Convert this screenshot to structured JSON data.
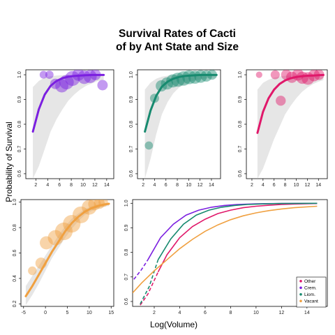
{
  "chart_data": {
    "type": "scatter",
    "title": [
      "Survival Rates of Cacti",
      "of by Ant State and Size"
    ],
    "ylabel": "Probability of Survival",
    "xlabel": "Log(Volume)",
    "panels": [
      {
        "name": "",
        "color": "#7B1FE0",
        "band_color": "#e6e6e6",
        "xlim": [
          0.3,
          15.2
        ],
        "ylim": [
          0.58,
          1.02
        ],
        "xticks": [
          2,
          4,
          6,
          8,
          10,
          12,
          14
        ],
        "yticks": [
          0.6,
          0.7,
          0.8,
          0.9,
          1.0
        ],
        "curve_x": [
          1.5,
          2.5,
          3.5,
          4.5,
          5.5,
          6.5,
          7.5,
          8.5,
          9.5,
          10.5,
          11.5,
          12.5,
          13.5
        ],
        "curve_y": [
          0.77,
          0.86,
          0.92,
          0.955,
          0.975,
          0.986,
          0.992,
          0.995,
          0.997,
          0.998,
          0.999,
          0.999,
          0.999
        ],
        "band_upper": [
          0.95,
          0.975,
          0.988,
          0.994,
          0.997,
          0.998,
          0.999,
          0.999,
          0.999,
          0.999,
          0.999,
          0.999,
          0.999
        ],
        "band_lower": [
          0.58,
          0.63,
          0.7,
          0.77,
          0.82,
          0.86,
          0.895,
          0.92,
          0.94,
          0.955,
          0.965,
          0.975,
          0.98
        ],
        "points": [
          {
            "x": 3.3,
            "y": 1.0,
            "s": 0.8
          },
          {
            "x": 4.3,
            "y": 1.0,
            "s": 0.9
          },
          {
            "x": 5.3,
            "y": 0.963,
            "s": 1.4
          },
          {
            "x": 6.4,
            "y": 0.955,
            "s": 2.0
          },
          {
            "x": 7.2,
            "y": 0.97,
            "s": 2.3
          },
          {
            "x": 8.2,
            "y": 0.985,
            "s": 2.4
          },
          {
            "x": 9.2,
            "y": 1.0,
            "s": 1.8
          },
          {
            "x": 10.2,
            "y": 0.99,
            "s": 2.1
          },
          {
            "x": 11.2,
            "y": 0.993,
            "s": 2.0
          },
          {
            "x": 12.1,
            "y": 1.0,
            "s": 1.5
          },
          {
            "x": 13.3,
            "y": 0.958,
            "s": 1.4
          }
        ]
      },
      {
        "name": "",
        "color": "#178A6F",
        "band_color": "#e6e6e6",
        "xlim": [
          1.0,
          15.6
        ],
        "ylim": [
          0.58,
          1.02
        ],
        "xticks": [
          2,
          4,
          6,
          8,
          10,
          12,
          14
        ],
        "yticks": [
          0.6,
          0.7,
          0.8,
          0.9,
          1.0
        ],
        "curve_x": [
          2.3,
          3.3,
          4.3,
          5.3,
          6.3,
          7.3,
          8.3,
          9.3,
          10.3,
          11.3,
          12.3,
          13.3,
          14.3,
          14.9
        ],
        "curve_y": [
          0.77,
          0.855,
          0.915,
          0.952,
          0.972,
          0.984,
          0.991,
          0.995,
          0.997,
          0.998,
          0.999,
          0.999,
          0.999,
          0.999
        ],
        "band_upper": [
          0.94,
          0.968,
          0.984,
          0.992,
          0.996,
          0.998,
          0.999,
          0.999,
          0.999,
          0.999,
          0.999,
          0.999,
          0.999,
          0.999
        ],
        "band_lower": [
          0.58,
          0.66,
          0.76,
          0.84,
          0.89,
          0.925,
          0.948,
          0.962,
          0.972,
          0.978,
          0.983,
          0.986,
          0.988,
          0.989
        ],
        "points": [
          {
            "x": 3.0,
            "y": 0.714,
            "s": 0.9
          },
          {
            "x": 4.0,
            "y": 0.905,
            "s": 1.1
          },
          {
            "x": 5.2,
            "y": 0.955,
            "s": 1.6
          },
          {
            "x": 6.2,
            "y": 0.965,
            "s": 1.8
          },
          {
            "x": 7.2,
            "y": 0.975,
            "s": 2.0
          },
          {
            "x": 8.1,
            "y": 0.98,
            "s": 2.2
          },
          {
            "x": 9.1,
            "y": 0.985,
            "s": 2.3
          },
          {
            "x": 10.1,
            "y": 0.99,
            "s": 2.2
          },
          {
            "x": 11.1,
            "y": 0.99,
            "s": 2.0
          },
          {
            "x": 12.1,
            "y": 0.993,
            "s": 1.9
          },
          {
            "x": 13.1,
            "y": 0.995,
            "s": 1.6
          },
          {
            "x": 14.1,
            "y": 1.0,
            "s": 1.3
          }
        ]
      },
      {
        "name": "",
        "color": "#E0186A",
        "band_color": "#e6e6e6",
        "xlim": [
          1.0,
          15.6
        ],
        "ylim": [
          0.58,
          1.02
        ],
        "xticks": [
          2,
          4,
          6,
          8,
          10,
          12,
          14
        ],
        "yticks": [
          0.6,
          0.7,
          0.8,
          0.9,
          1.0
        ],
        "curve_x": [
          3.0,
          4.0,
          5.0,
          6.0,
          7.0,
          8.0,
          9.0,
          10.0,
          11.0,
          12.0,
          13.0,
          14.0,
          14.9
        ],
        "curve_y": [
          0.765,
          0.85,
          0.905,
          0.94,
          0.963,
          0.977,
          0.986,
          0.991,
          0.994,
          0.996,
          0.997,
          0.998,
          0.999
        ],
        "band_upper": [
          0.94,
          0.967,
          0.98,
          0.988,
          0.993,
          0.996,
          0.997,
          0.998,
          0.999,
          0.999,
          0.999,
          0.999,
          0.999
        ],
        "band_lower": [
          0.58,
          0.62,
          0.68,
          0.74,
          0.79,
          0.84,
          0.875,
          0.905,
          0.93,
          0.948,
          0.962,
          0.972,
          0.978
        ],
        "points": [
          {
            "x": 3.3,
            "y": 1.0,
            "s": 0.5
          },
          {
            "x": 6.2,
            "y": 1.0,
            "s": 1.1
          },
          {
            "x": 7.2,
            "y": 0.895,
            "s": 1.3
          },
          {
            "x": 8.2,
            "y": 1.0,
            "s": 1.4
          },
          {
            "x": 9.2,
            "y": 0.99,
            "s": 1.6
          },
          {
            "x": 10.3,
            "y": 1.0,
            "s": 1.7
          },
          {
            "x": 11.1,
            "y": 0.988,
            "s": 1.8
          },
          {
            "x": 12.1,
            "y": 0.985,
            "s": 1.9
          },
          {
            "x": 13.2,
            "y": 0.997,
            "s": 1.7
          },
          {
            "x": 14.1,
            "y": 1.0,
            "s": 1.4
          }
        ]
      },
      {
        "name": "",
        "color": "#F0A040",
        "band_color": "#e6e6e6",
        "xlim": [
          -5.6,
          15.6
        ],
        "ylim": [
          0.18,
          1.02
        ],
        "xticks": [
          -5,
          0,
          5,
          10,
          15
        ],
        "yticks": [
          0.2,
          0.4,
          0.6,
          0.8,
          1.0
        ],
        "curve_x": [
          -4.5,
          -3,
          -1.5,
          0,
          1.5,
          3,
          4.5,
          6,
          7.5,
          9,
          10.5,
          12,
          13.5,
          14.5
        ],
        "curve_y": [
          0.26,
          0.34,
          0.43,
          0.52,
          0.61,
          0.69,
          0.77,
          0.835,
          0.885,
          0.925,
          0.952,
          0.97,
          0.982,
          0.987
        ],
        "band_upper": [
          0.34,
          0.42,
          0.5,
          0.58,
          0.66,
          0.74,
          0.81,
          0.87,
          0.91,
          0.945,
          0.968,
          0.982,
          0.99,
          0.994
        ],
        "band_lower": [
          0.19,
          0.27,
          0.36,
          0.46,
          0.56,
          0.64,
          0.72,
          0.79,
          0.85,
          0.9,
          0.93,
          0.952,
          0.965,
          0.97
        ],
        "points": [
          {
            "x": -3.0,
            "y": 0.46,
            "s": 1.0
          },
          {
            "x": -1.0,
            "y": 0.52,
            "s": 1.6
          },
          {
            "x": 0.2,
            "y": 0.68,
            "s": 2.0
          },
          {
            "x": 2.3,
            "y": 0.72,
            "s": 2.5
          },
          {
            "x": 4.2,
            "y": 0.77,
            "s": 3.0
          },
          {
            "x": 6.0,
            "y": 0.83,
            "s": 3.0
          },
          {
            "x": 8.1,
            "y": 0.9,
            "s": 2.8
          },
          {
            "x": 10.0,
            "y": 0.96,
            "s": 2.4
          },
          {
            "x": 11.2,
            "y": 0.985,
            "s": 1.9
          },
          {
            "x": 12.3,
            "y": 0.99,
            "s": 1.5
          },
          {
            "x": 13.2,
            "y": 1.0,
            "s": 1.2
          }
        ]
      }
    ],
    "combined": {
      "xlim": [
        0.3,
        15.6
      ],
      "ylim": [
        0.58,
        1.015
      ],
      "xticks": [
        2,
        4,
        6,
        8,
        10,
        12,
        14
      ],
      "yticks": [
        0.6,
        0.7,
        0.8,
        0.9,
        1.0
      ],
      "series": [
        {
          "name": "Other",
          "color": "#E0186A",
          "solid_from": 2.3,
          "x": [
            0.9,
            1.5,
            2.3,
            3,
            4,
            5,
            6,
            7,
            8,
            9,
            10,
            11,
            12,
            13,
            14.8
          ],
          "y": [
            0.585,
            0.63,
            0.72,
            0.79,
            0.86,
            0.905,
            0.935,
            0.958,
            0.972,
            0.982,
            0.988,
            0.992,
            0.995,
            0.997,
            0.999
          ]
        },
        {
          "name": "Crem.",
          "color": "#7B1FE0",
          "solid_from": 1.5,
          "x": [
            0.4,
            1.0,
            1.5,
            2.5,
            3.5,
            4.5,
            5.5,
            6.5,
            7.5,
            8.5,
            10,
            12,
            14.8
          ],
          "y": [
            0.69,
            0.73,
            0.77,
            0.86,
            0.915,
            0.952,
            0.972,
            0.984,
            0.991,
            0.995,
            0.998,
            0.999,
            1.0
          ]
        },
        {
          "name": "Liom.",
          "color": "#178A6F",
          "solid_from": 2.3,
          "x": [
            0.9,
            1.6,
            2.3,
            3.3,
            4.3,
            5.3,
            6.3,
            7.3,
            8.3,
            9.3,
            10.3,
            12,
            14.8
          ],
          "y": [
            0.59,
            0.66,
            0.77,
            0.855,
            0.915,
            0.952,
            0.972,
            0.984,
            0.991,
            0.995,
            0.997,
            0.999,
            1.0
          ]
        },
        {
          "name": "Vacant",
          "color": "#F0A040",
          "solid_from": 0.3,
          "x": [
            0.3,
            1,
            2,
            3,
            4,
            5,
            6,
            7,
            8,
            9,
            10,
            11,
            12,
            13,
            14.8
          ],
          "y": [
            0.635,
            0.675,
            0.725,
            0.77,
            0.815,
            0.853,
            0.886,
            0.912,
            0.933,
            0.949,
            0.961,
            0.97,
            0.977,
            0.982,
            0.988
          ]
        }
      ]
    }
  }
}
